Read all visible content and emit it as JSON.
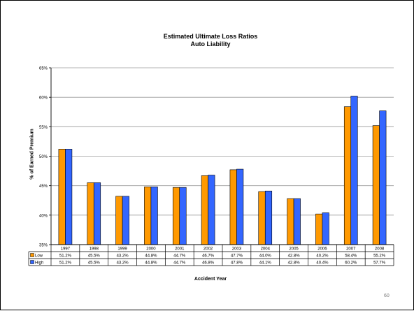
{
  "page_number": "60",
  "chart_data": {
    "type": "bar",
    "title": "Estimated Ultimate Loss Ratios",
    "subtitle": "Auto Liability",
    "xlabel": "Accident Year",
    "ylabel": "% of Earned Premium",
    "ylim": [
      35,
      65
    ],
    "yticks": [
      "35%",
      "40%",
      "45%",
      "50%",
      "55%",
      "60%",
      "65%"
    ],
    "grid": true,
    "legend_placement": "data-table",
    "categories": [
      "1997",
      "1998",
      "1999",
      "2000",
      "2001",
      "2002",
      "2003",
      "2004",
      "2005",
      "2006",
      "2007",
      "2008"
    ],
    "series": [
      {
        "name": "Low",
        "color": "#FF9900",
        "values": [
          51.2,
          45.5,
          43.2,
          44.8,
          44.7,
          46.7,
          47.7,
          44.0,
          42.8,
          40.2,
          58.4,
          55.2
        ],
        "labels": [
          "51.2%",
          "45.5%",
          "43.2%",
          "44.8%",
          "44.7%",
          "46.7%",
          "47.7%",
          "44.0%",
          "42.8%",
          "40.2%",
          "58.4%",
          "55.2%"
        ]
      },
      {
        "name": "High",
        "color": "#3366FF",
        "values": [
          51.2,
          45.5,
          43.2,
          44.8,
          44.7,
          46.8,
          47.8,
          44.1,
          42.8,
          40.4,
          60.2,
          57.7
        ],
        "labels": [
          "51.2%",
          "45.5%",
          "43.2%",
          "44.8%",
          "44.7%",
          "46.8%",
          "47.8%",
          "44.1%",
          "42.8%",
          "40.4%",
          "60.2%",
          "57.7%"
        ]
      }
    ]
  }
}
